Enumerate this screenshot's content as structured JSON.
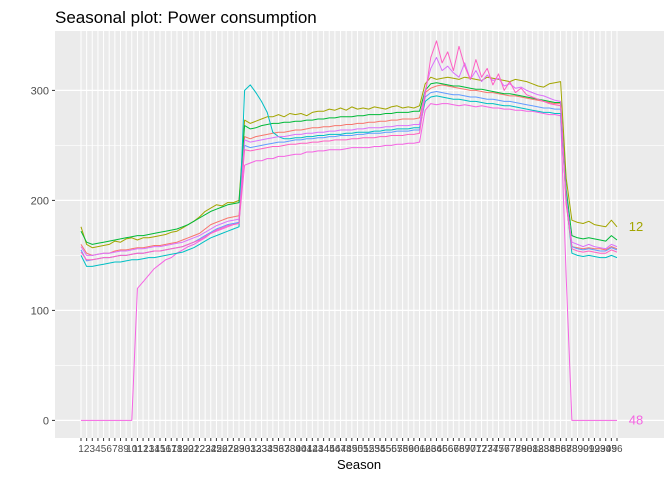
{
  "chart_data": {
    "type": "line",
    "title": "Seasonal plot: Power consumption",
    "xlabel": "Season",
    "ylabel": "",
    "xlim": [
      1,
      96
    ],
    "ylim": [
      -16,
      354
    ],
    "yticks": [
      0,
      100,
      200,
      300
    ],
    "xticks": [
      "1",
      "2",
      "3",
      "4",
      "5",
      "6",
      "7",
      "8",
      "9",
      "10",
      "11",
      "12",
      "13",
      "14",
      "15",
      "16",
      "17",
      "18",
      "19",
      "20",
      "21",
      "22",
      "23",
      "24",
      "25",
      "26",
      "27",
      "28",
      "29",
      "30",
      "31",
      "32",
      "33",
      "34",
      "35",
      "36",
      "37",
      "38",
      "39",
      "40",
      "41",
      "42",
      "43",
      "44",
      "45",
      "46",
      "47",
      "48",
      "49",
      "50",
      "51",
      "52",
      "53",
      "54",
      "55",
      "56",
      "57",
      "58",
      "59",
      "60",
      "61",
      "62",
      "63",
      "64",
      "65",
      "66",
      "67",
      "68",
      "69",
      "70",
      "71",
      "72",
      "73",
      "74",
      "75",
      "76",
      "77",
      "78",
      "79",
      "80",
      "81",
      "82",
      "83",
      "84",
      "85",
      "86",
      "87",
      "88",
      "89",
      "90",
      "91",
      "92",
      "93",
      "94",
      "95",
      "96"
    ],
    "grid": true,
    "legend": "none",
    "background": "#ebebeb",
    "gridline_color": "#ffffff",
    "series": [
      {
        "label": "12",
        "color": "#a3a500",
        "values": [
          176,
          160,
          157,
          158,
          159,
          160,
          163,
          162,
          165,
          166,
          164,
          166,
          166,
          167,
          168,
          169,
          171,
          172,
          175,
          178,
          181,
          185,
          190,
          193,
          196,
          195,
          198,
          198,
          200,
          273,
          270,
          272,
          274,
          276,
          276,
          278,
          276,
          279,
          278,
          279,
          277,
          280,
          281,
          281,
          283,
          282,
          284,
          282,
          285,
          283,
          284,
          283,
          285,
          284,
          283,
          285,
          286,
          284,
          285,
          284,
          286,
          306,
          312,
          310,
          311,
          312,
          311,
          310,
          312,
          311,
          310,
          309,
          312,
          311,
          310,
          309,
          308,
          310,
          309,
          308,
          306,
          304,
          303,
          306,
          307,
          308,
          220,
          182,
          180,
          179,
          181,
          178,
          177,
          176,
          182,
          176
        ]
      },
      {
        "label": "48",
        "color": "#f564e3",
        "values": [
          0,
          0,
          0,
          0,
          0,
          0,
          0,
          0,
          0,
          0,
          120,
          126,
          132,
          138,
          142,
          146,
          148,
          152,
          155,
          158,
          160,
          163,
          166,
          170,
          172,
          174,
          176,
          178,
          180,
          232,
          234,
          236,
          236,
          238,
          238,
          240,
          240,
          241,
          242,
          242,
          244,
          244,
          245,
          245,
          246,
          246,
          246,
          247,
          248,
          248,
          248,
          248,
          249,
          249,
          250,
          250,
          251,
          251,
          252,
          252,
          253,
          282,
          288,
          287,
          288,
          288,
          287,
          286,
          287,
          286,
          285,
          286,
          285,
          284,
          284,
          283,
          283,
          282,
          282,
          281,
          281,
          280,
          279,
          278,
          278,
          277,
          130,
          0,
          0,
          0,
          0,
          0,
          0,
          0,
          0,
          0
        ]
      },
      {
        "label": "",
        "color": "#f8766d",
        "values": [
          160,
          152,
          150,
          151,
          152,
          152,
          154,
          155,
          155,
          156,
          157,
          157,
          158,
          159,
          159,
          160,
          161,
          162,
          164,
          166,
          168,
          170,
          174,
          178,
          180,
          182,
          184,
          185,
          186,
          258,
          256,
          258,
          259,
          260,
          261,
          262,
          262,
          263,
          264,
          264,
          265,
          266,
          266,
          267,
          267,
          268,
          268,
          269,
          269,
          270,
          270,
          271,
          271,
          272,
          272,
          273,
          273,
          274,
          274,
          274,
          275,
          298,
          302,
          304,
          305,
          304,
          303,
          302,
          301,
          300,
          300,
          299,
          298,
          298,
          297,
          296,
          295,
          295,
          294,
          293,
          292,
          291,
          290,
          289,
          288,
          288,
          196,
          158,
          157,
          156,
          157,
          156,
          156,
          155,
          158,
          156
        ]
      },
      {
        "label": "",
        "color": "#00ba38",
        "values": [
          172,
          162,
          160,
          161,
          162,
          163,
          164,
          165,
          166,
          167,
          168,
          168,
          169,
          170,
          171,
          172,
          173,
          174,
          176,
          178,
          181,
          184,
          187,
          190,
          192,
          194,
          196,
          197,
          198,
          268,
          265,
          266,
          268,
          269,
          270,
          270,
          271,
          271,
          272,
          272,
          273,
          273,
          274,
          274,
          275,
          275,
          276,
          276,
          276,
          277,
          277,
          278,
          278,
          278,
          279,
          279,
          280,
          280,
          280,
          281,
          281,
          300,
          306,
          307,
          306,
          305,
          304,
          304,
          303,
          302,
          301,
          301,
          300,
          299,
          298,
          297,
          297,
          296,
          295,
          294,
          293,
          292,
          291,
          290,
          289,
          289,
          210,
          168,
          166,
          165,
          166,
          165,
          164,
          163,
          168,
          164
        ]
      },
      {
        "label": "",
        "color": "#00bfc4",
        "values": [
          150,
          140,
          140,
          141,
          142,
          143,
          144,
          144,
          145,
          146,
          146,
          147,
          148,
          148,
          149,
          150,
          151,
          152,
          153,
          155,
          157,
          160,
          163,
          166,
          168,
          170,
          172,
          174,
          176,
          300,
          305,
          298,
          290,
          280,
          262,
          258,
          256,
          256,
          257,
          257,
          258,
          258,
          259,
          259,
          260,
          260,
          260,
          261,
          261,
          262,
          262,
          262,
          263,
          263,
          264,
          264,
          265,
          265,
          265,
          266,
          266,
          290,
          294,
          295,
          294,
          293,
          292,
          292,
          291,
          290,
          290,
          289,
          288,
          288,
          287,
          286,
          286,
          285,
          284,
          283,
          282,
          281,
          280,
          280,
          279,
          279,
          200,
          152,
          150,
          149,
          150,
          149,
          148,
          148,
          150,
          148
        ]
      },
      {
        "label": "",
        "color": "#619cff",
        "values": [
          155,
          145,
          146,
          147,
          148,
          148,
          149,
          150,
          150,
          151,
          152,
          152,
          153,
          154,
          154,
          155,
          156,
          157,
          158,
          160,
          162,
          165,
          168,
          171,
          174,
          176,
          178,
          179,
          180,
          250,
          248,
          249,
          250,
          251,
          252,
          253,
          253,
          254,
          255,
          255,
          256,
          256,
          257,
          257,
          258,
          258,
          259,
          259,
          259,
          260,
          260,
          261,
          261,
          261,
          262,
          262,
          263,
          263,
          263,
          264,
          264,
          294,
          298,
          299,
          298,
          297,
          296,
          296,
          295,
          294,
          294,
          293,
          292,
          292,
          291,
          290,
          290,
          289,
          288,
          287,
          286,
          285,
          284,
          284,
          283,
          283,
          205,
          158,
          156,
          155,
          156,
          155,
          154,
          154,
          157,
          155
        ]
      },
      {
        "label": "",
        "color": "#db72fb",
        "values": [
          158,
          150,
          150,
          151,
          152,
          152,
          153,
          154,
          154,
          155,
          156,
          156,
          157,
          158,
          158,
          159,
          160,
          161,
          162,
          164,
          166,
          168,
          171,
          174,
          177,
          179,
          181,
          182,
          183,
          255,
          253,
          254,
          255,
          256,
          257,
          258,
          258,
          259,
          260,
          260,
          261,
          261,
          262,
          262,
          263,
          263,
          264,
          264,
          264,
          265,
          265,
          266,
          266,
          266,
          267,
          267,
          268,
          268,
          268,
          269,
          269,
          300,
          320,
          330,
          318,
          322,
          316,
          312,
          325,
          310,
          318,
          308,
          314,
          309,
          311,
          304,
          306,
          302,
          303,
          300,
          298,
          296,
          295,
          293,
          291,
          290,
          200,
          162,
          160,
          158,
          160,
          158,
          157,
          156,
          160,
          158
        ]
      },
      {
        "label": "",
        "color": "#ff61c3",
        "values": [
          153,
          146,
          146,
          147,
          148,
          148,
          149,
          150,
          150,
          151,
          152,
          152,
          153,
          154,
          154,
          155,
          156,
          157,
          158,
          160,
          162,
          164,
          167,
          170,
          173,
          175,
          177,
          178,
          179,
          246,
          245,
          246,
          247,
          248,
          249,
          249,
          250,
          251,
          251,
          252,
          252,
          253,
          253,
          254,
          254,
          255,
          255,
          255,
          256,
          256,
          257,
          257,
          257,
          258,
          258,
          259,
          259,
          259,
          260,
          260,
          261,
          296,
          330,
          345,
          325,
          335,
          318,
          340,
          322,
          310,
          328,
          312,
          320,
          305,
          315,
          300,
          308,
          298,
          302,
          296,
          294,
          292,
          290,
          288,
          287,
          286,
          198,
          156,
          154,
          153,
          154,
          153,
          152,
          152,
          155,
          153
        ]
      }
    ]
  }
}
